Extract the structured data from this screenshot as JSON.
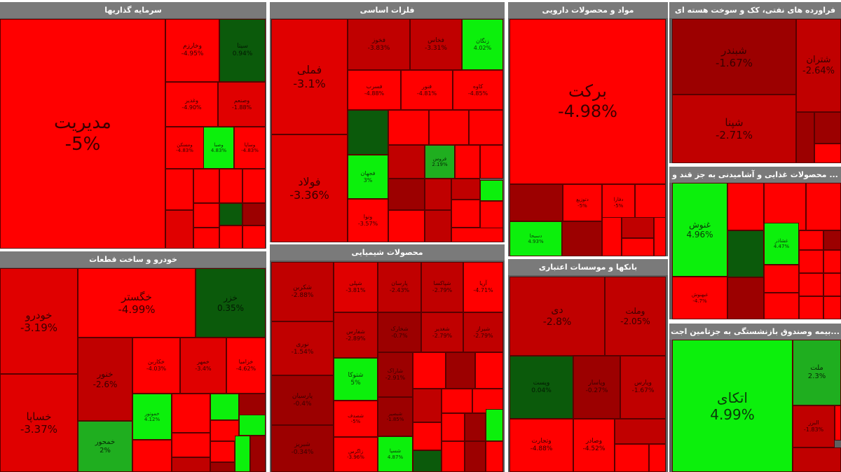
{
  "colors": {
    "strong_down": "#ff0000",
    "down": "#e00000",
    "mild_down": "#c00000",
    "slight_down": "#9c0000",
    "strong_up": "#0cf00c",
    "up": "#1fae1f",
    "slight_up": "#0b5a0b",
    "header": "#7a7a7a"
  },
  "panels": [
    {
      "title": "سرمایه گذاریها",
      "tiles": [
        {
          "symbol": "مدیریت",
          "change": "-5%"
        },
        {
          "symbol": "وخارزم",
          "change": "-4.95%"
        },
        {
          "symbol": "سیتا",
          "change": "0.94%"
        },
        {
          "symbol": "وغدیر",
          "change": "-4.90%"
        },
        {
          "symbol": "وصنعم",
          "change": "-1.88%"
        },
        {
          "symbol": "ومسکن",
          "change": "-4.83%"
        },
        {
          "symbol": "وصبا",
          "change": "4.83%"
        },
        {
          "symbol": "وساپا",
          "change": "-4.83%"
        }
      ]
    },
    {
      "title": "فلزات اساسی",
      "tiles": [
        {
          "symbol": "فملی",
          "change": "-3.1%"
        },
        {
          "symbol": "فولاد",
          "change": "-3.36%"
        },
        {
          "symbol": "فخوز",
          "change": "-3.83%"
        },
        {
          "symbol": "فخاس",
          "change": "-3.31%"
        },
        {
          "symbol": "زنگان",
          "change": "4.02%"
        },
        {
          "symbol": "فسرب",
          "change": "-4.88%"
        },
        {
          "symbol": "فنور",
          "change": "-4.81%"
        },
        {
          "symbol": "کاوه",
          "change": "-4.85%"
        },
        {
          "symbol": "فجهان",
          "change": "3%"
        },
        {
          "symbol": "فروس",
          "change": "2.19%"
        },
        {
          "symbol": "ونوا",
          "change": "-3.57%"
        }
      ]
    },
    {
      "title": "مواد و محصولات دارویی",
      "tiles": [
        {
          "symbol": "برکت",
          "change": "-4.98%"
        },
        {
          "symbol": "دسبحا",
          "change": "4.93%"
        },
        {
          "symbol": "دتوزیع",
          "change": "-5%"
        },
        {
          "symbol": "دفارا",
          "change": "-5%"
        }
      ]
    },
    {
      "title": "فراورده های نفتی، کک و سوخت هسته ای",
      "tiles": [
        {
          "symbol": "شبندر",
          "change": "-1.67%"
        },
        {
          "symbol": "شپنا",
          "change": "-2.71%"
        },
        {
          "symbol": "شتران",
          "change": "-2.64%"
        }
      ]
    },
    {
      "title": "... محصولات غذایی و آشامیدنی به جز قند و",
      "tiles": [
        {
          "symbol": "غنوش",
          "change": "4.96%"
        },
        {
          "symbol": "غشاذر",
          "change": "4.47%"
        },
        {
          "symbol": "غبهنوش",
          "change": "-4.7%"
        }
      ]
    },
    {
      "title": "بانکها و موسسات اعتباری",
      "tiles": [
        {
          "symbol": "دی",
          "change": "-2.8%"
        },
        {
          "symbol": "وملت",
          "change": "-2.05%"
        },
        {
          "symbol": "وپست",
          "change": "0.04%"
        },
        {
          "symbol": "وپاسار",
          "change": "-0.27%"
        },
        {
          "symbol": "وپارس",
          "change": "-1.67%"
        },
        {
          "symbol": "وتجارت",
          "change": "-4.88%"
        },
        {
          "symbol": "وصادر",
          "change": "-4.52%"
        }
      ]
    },
    {
      "title": "...بیمه وصندوق بازنشستگی به جزتامین اجت",
      "tiles": [
        {
          "symbol": "اتکای",
          "change": "4.99%"
        },
        {
          "symbol": "ملت",
          "change": "2.3%"
        },
        {
          "symbol": "البرز",
          "change": "-1.83%"
        }
      ]
    },
    {
      "title": "خودرو و ساخت قطعات",
      "tiles": [
        {
          "symbol": "خودرو",
          "change": "-3.19%"
        },
        {
          "symbol": "خساپا",
          "change": "-3.37%"
        },
        {
          "symbol": "خگستر",
          "change": "-4.99%"
        },
        {
          "symbol": "خزر",
          "change": "0.35%"
        },
        {
          "symbol": "خنور",
          "change": "-2.6%"
        },
        {
          "symbol": "خمحور",
          "change": "2%"
        },
        {
          "symbol": "خکاربن",
          "change": "-4.03%"
        },
        {
          "symbol": "خمهر",
          "change": "-3.4%"
        },
        {
          "symbol": "خزامیا",
          "change": "-4.62%"
        },
        {
          "symbol": "خموتور",
          "change": "4.12%"
        }
      ]
    },
    {
      "title": "محصولات شیمیایی",
      "tiles": [
        {
          "symbol": "شکربن",
          "change": "-2.88%"
        },
        {
          "symbol": "شپلی",
          "change": "-3.81%"
        },
        {
          "symbol": "پارسان",
          "change": "-2.43%"
        },
        {
          "symbol": "شپاکسا",
          "change": "-2.79%"
        },
        {
          "symbol": "آریا",
          "change": "-4.71%"
        },
        {
          "symbol": "نوری",
          "change": "-1.54%"
        },
        {
          "symbol": "شفارس",
          "change": "-2.89%"
        },
        {
          "symbol": "شخارک",
          "change": "-0.7%"
        },
        {
          "symbol": "شغدیر",
          "change": "-2.79%"
        },
        {
          "symbol": "شیراز",
          "change": "-2.79%"
        },
        {
          "symbol": "پارسیان",
          "change": "-0.4%"
        },
        {
          "symbol": "شتوکا",
          "change": "5%"
        },
        {
          "symbol": "شاراک",
          "change": "-2.91%"
        },
        {
          "symbol": "شصدف",
          "change": "-5%"
        },
        {
          "symbol": "شبصیر",
          "change": "-1.85%"
        },
        {
          "symbol": "شبریز",
          "change": "-0.34%"
        },
        {
          "symbol": "زاگرس",
          "change": "-3.96%"
        },
        {
          "symbol": "شسپا",
          "change": "4.87%"
        }
      ]
    }
  ]
}
